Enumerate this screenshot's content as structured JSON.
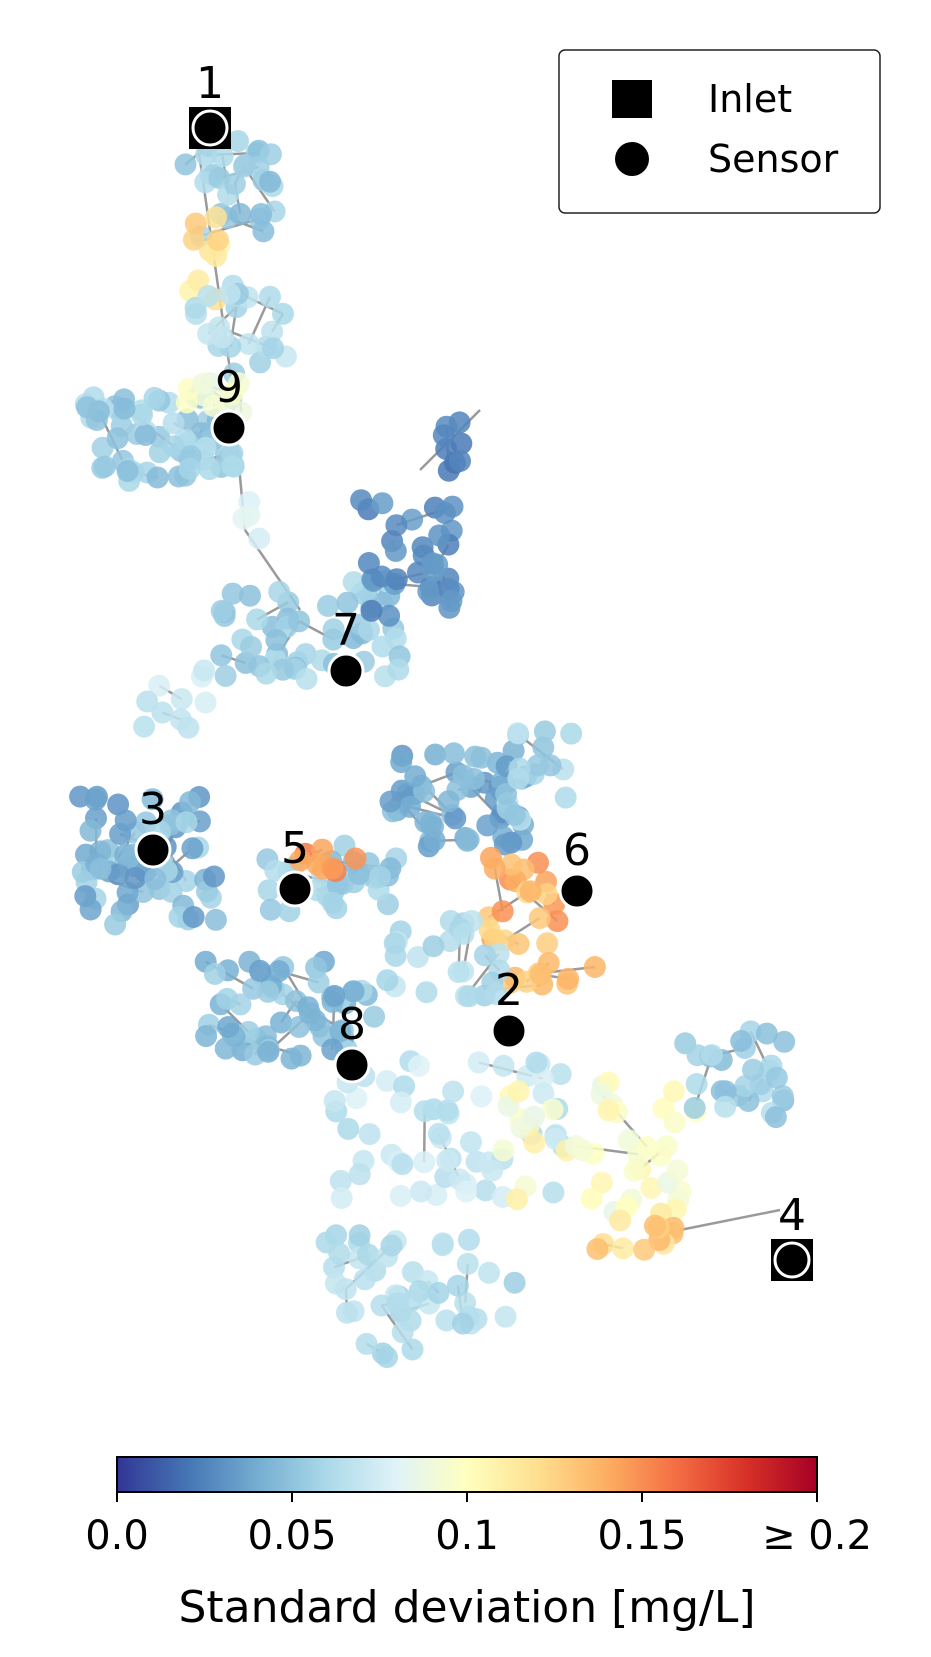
{
  "chart_data": {
    "type": "scatter",
    "description_kind": "network map",
    "colorbar": {
      "label": "Standard deviation [mg/L]",
      "range": [
        0.0,
        0.2
      ],
      "ticks": [
        {
          "value": 0.0,
          "label": "0.0"
        },
        {
          "value": 0.05,
          "label": "0.05"
        },
        {
          "value": 0.1,
          "label": "0.1"
        },
        {
          "value": 0.15,
          "label": "0.15"
        },
        {
          "value": 0.2,
          "label": "≥ 0.2"
        }
      ],
      "colormap": "RdYlBu_r",
      "colors": [
        "#313695",
        "#4575b4",
        "#74add1",
        "#abd9e9",
        "#e0f3f8",
        "#ffffbf",
        "#fee090",
        "#fdae61",
        "#f46d43",
        "#d73027",
        "#a50026"
      ]
    },
    "legend": {
      "placement": "top-right",
      "entries": [
        {
          "marker": "square",
          "label": "Inlet"
        },
        {
          "marker": "circle",
          "label": "Sensor"
        }
      ]
    },
    "sensors": [
      {
        "label": "1",
        "inlet": true
      },
      {
        "label": "2",
        "inlet": false
      },
      {
        "label": "3",
        "inlet": false
      },
      {
        "label": "4",
        "inlet": true
      },
      {
        "label": "5",
        "inlet": false
      },
      {
        "label": "6",
        "inlet": false
      },
      {
        "label": "7",
        "inlet": false
      },
      {
        "label": "8",
        "inlet": false
      },
      {
        "label": "9",
        "inlet": false
      }
    ],
    "axes": "off"
  }
}
